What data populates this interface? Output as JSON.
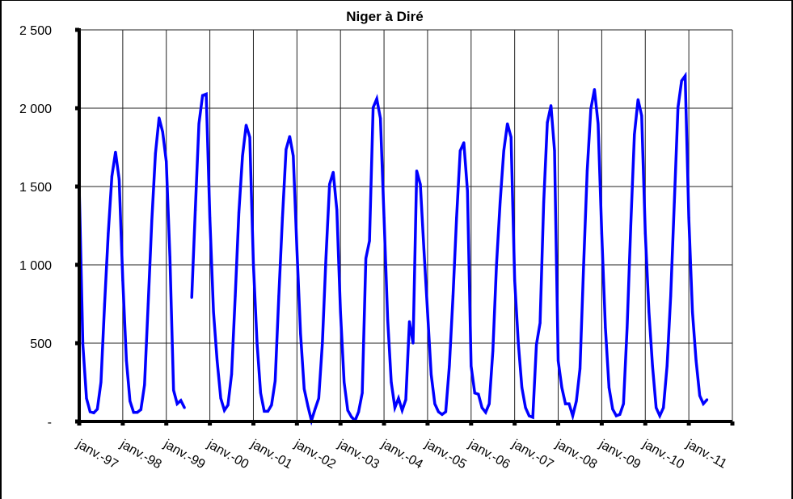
{
  "chart_data": {
    "type": "line",
    "title": "Niger à Diré",
    "xlabel": "",
    "ylabel": "",
    "ylim": [
      0,
      2500
    ],
    "yticks": [
      0,
      500,
      1000,
      1500,
      2000,
      2500
    ],
    "ytick_labels": [
      "-",
      "500",
      "1 000",
      "1 500",
      "2 000",
      "2 500"
    ],
    "xlim": [
      "1997-01",
      "2012-01"
    ],
    "xtick_labels": [
      "janv.-97",
      "janv.-98",
      "janv.-99",
      "janv.-00",
      "janv.-01",
      "janv.-02",
      "janv.-03",
      "janv.-04",
      "janv.-05",
      "janv.-06",
      "janv.-07",
      "janv.-08",
      "janv.-09",
      "janv.-10",
      "janv.-11"
    ],
    "grid": true,
    "legend": "none",
    "series_color": "#0000ff",
    "series": [
      {
        "x": [
          "1997-01",
          "1997-02",
          "1997-03",
          "1997-04",
          "1997-05",
          "1997-06",
          "1997-07",
          "1997-08",
          "1997-09",
          "1997-10",
          "1997-11",
          "1997-12",
          "1998-01",
          "1998-02",
          "1998-03",
          "1998-04",
          "1998-05",
          "1998-06",
          "1998-07",
          "1998-08",
          "1998-09",
          "1998-10",
          "1998-11",
          "1998-12",
          "1999-01",
          "1999-02",
          "1999-03",
          "1999-04",
          "1999-05",
          "1999-06",
          "1999-07",
          "1999-08",
          "1999-09",
          "1999-10",
          "1999-11",
          "1999-12",
          "2000-01",
          "2000-02",
          "2000-03",
          "2000-04",
          "2000-05",
          "2000-06",
          "2000-07",
          "2000-08",
          "2000-09",
          "2000-10",
          "2000-11",
          "2000-12",
          "2001-01",
          "2001-02",
          "2001-03",
          "2001-04",
          "2001-05",
          "2001-06",
          "2001-07",
          "2001-08",
          "2001-09",
          "2001-10",
          "2001-11",
          "2001-12",
          "2002-01",
          "2002-02",
          "2002-03",
          "2002-04",
          "2002-05",
          "2002-06",
          "2002-07",
          "2002-08",
          "2002-09",
          "2002-10",
          "2002-11",
          "2002-12",
          "2003-01",
          "2003-02",
          "2003-03",
          "2003-04",
          "2003-05",
          "2003-06",
          "2003-07",
          "2003-08",
          "2003-09",
          "2003-10",
          "2003-11",
          "2003-12",
          "2004-01",
          "2004-02",
          "2004-03",
          "2004-04",
          "2004-05",
          "2004-06",
          "2004-07",
          "2004-08",
          "2004-09",
          "2004-10",
          "2004-11",
          "2004-12",
          "2005-01",
          "2005-02",
          "2005-03",
          "2005-04",
          "2005-05",
          "2005-06",
          "2005-07",
          "2005-08",
          "2005-09",
          "2005-10",
          "2005-11",
          "2005-12",
          "2006-01",
          "2006-02",
          "2006-03",
          "2006-04",
          "2006-05",
          "2006-06",
          "2006-07",
          "2006-08",
          "2006-09",
          "2006-10",
          "2006-11",
          "2006-12",
          "2007-01",
          "2007-02",
          "2007-03",
          "2007-04",
          "2007-05",
          "2007-06",
          "2007-07",
          "2007-08",
          "2007-09",
          "2007-10",
          "2007-11",
          "2007-12",
          "2008-01",
          "2008-02",
          "2008-03",
          "2008-04",
          "2008-05",
          "2008-06",
          "2008-07",
          "2008-08",
          "2008-09",
          "2008-10",
          "2008-11",
          "2008-12",
          "2009-01",
          "2009-02",
          "2009-03",
          "2009-04",
          "2009-05",
          "2009-06",
          "2009-07",
          "2009-08",
          "2009-09",
          "2009-10",
          "2009-11",
          "2009-12",
          "2010-01",
          "2010-02",
          "2010-03",
          "2010-04",
          "2010-05",
          "2010-06",
          "2010-07",
          "2010-08",
          "2010-09",
          "2010-10",
          "2010-11",
          "2010-12",
          "2011-01",
          "2011-02",
          "2011-03",
          "2011-04",
          "2011-05",
          "2011-06"
        ],
        "values": [
          1500,
          491,
          148,
          62,
          55,
          79,
          251,
          750,
          1200,
          1565,
          1720,
          1546,
          900,
          388,
          130,
          58,
          58,
          76,
          234,
          750,
          1282,
          1711,
          1938,
          1849,
          1660,
          1050,
          200,
          113,
          134,
          88,
          null,
          792,
          1350,
          1901,
          2081,
          2090,
          1300,
          700,
          388,
          148,
          71,
          105,
          302,
          800,
          1333,
          1695,
          1892,
          1815,
          1000,
          500,
          182,
          65,
          65,
          105,
          259,
          800,
          1300,
          1737,
          1820,
          1695,
          1100,
          560,
          208,
          100,
          5,
          80,
          148,
          500,
          1041,
          1514,
          1591,
          1351,
          700,
          251,
          71,
          30,
          5,
          62,
          182,
          1041,
          1153,
          2004,
          2060,
          1935,
          1300,
          650,
          251,
          88,
          148,
          71,
          139,
          638,
          500,
          1600,
          1514,
          1100,
          700,
          300,
          113,
          62,
          45,
          62,
          354,
          800,
          1299,
          1728,
          1780,
          1471,
          354,
          182,
          174,
          88,
          58,
          113,
          450,
          1000,
          1400,
          1728,
          1901,
          1815,
          900,
          500,
          217,
          88,
          36,
          27,
          491,
          629,
          1400,
          1909,
          2017,
          1728,
          388,
          217,
          113,
          113,
          36,
          130,
          337,
          1000,
          1600,
          1995,
          2120,
          1901,
          1200,
          600,
          217,
          79,
          36,
          45,
          113,
          600,
          1250,
          1832,
          2055,
          1952,
          1200,
          700,
          354,
          88,
          36,
          88,
          354,
          801,
          1400,
          2004,
          2175,
          2206,
          1300,
          700,
          388,
          165,
          113,
          139
        ]
      }
    ]
  }
}
